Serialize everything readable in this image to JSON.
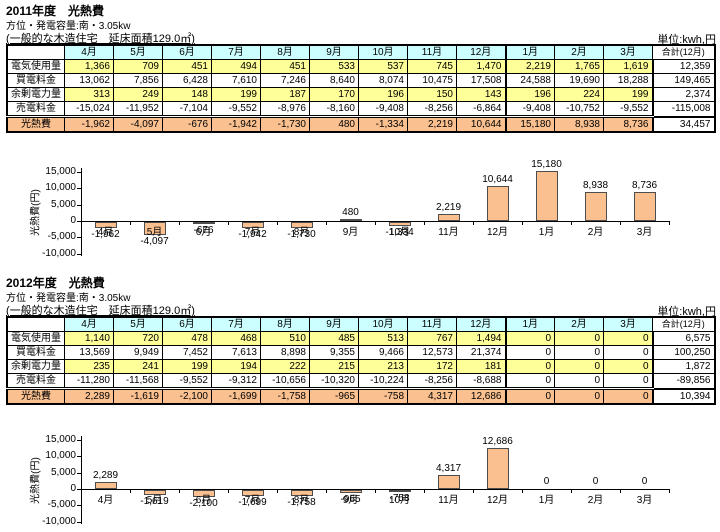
{
  "sections": [
    {
      "title": "2011年度　光熱費",
      "subtitle_capacity": "方位・発電容量:南・3.05kw",
      "subtitle_house": "(一般的な木造住宅　延床面積129.0㎡)",
      "unit_label": "単位:kwh,円",
      "table": {
        "months": [
          "4月",
          "5月",
          "6月",
          "7月",
          "8月",
          "9月",
          "10月",
          "11月",
          "12月",
          "1月",
          "2月",
          "3月"
        ],
        "total_header": "合計(12月)",
        "rows": [
          {
            "label": "電気使用量",
            "fill": "#FFFF99",
            "values": [
              "1,366",
              "709",
              "451",
              "494",
              "451",
              "533",
              "537",
              "745",
              "1,470",
              "2,219",
              "1,765",
              "1,619"
            ],
            "total": "12,359"
          },
          {
            "label": "買電料金",
            "fill": "#FFFFFF",
            "values": [
              "13,062",
              "7,856",
              "6,428",
              "7,610",
              "7,246",
              "8,640",
              "8,074",
              "10,475",
              "17,508",
              "24,588",
              "19,690",
              "18,288"
            ],
            "total": "149,465"
          },
          {
            "label": "余剰電力量",
            "fill": "#FFFF99",
            "values": [
              "313",
              "249",
              "148",
              "199",
              "187",
              "170",
              "196",
              "150",
              "143",
              "196",
              "224",
              "199"
            ],
            "total": "2,374"
          },
          {
            "label": "売電料金",
            "fill": "#FFFFFF",
            "values": [
              "-15,024",
              "-11,952",
              "-7,104",
              "-9,552",
              "-8,976",
              "-8,160",
              "-9,408",
              "-8,256",
              "-6,864",
              "-9,408",
              "-10,752",
              "-9,552"
            ],
            "total": "-115,008"
          },
          {
            "label": "光熱費",
            "fill": "#FAC090",
            "values": [
              "-1,962",
              "-4,097",
              "-676",
              "-1,942",
              "-1,730",
              "480",
              "-1,334",
              "2,219",
              "10,644",
              "15,180",
              "8,938",
              "8,736"
            ],
            "total": "34,457"
          }
        ]
      }
    },
    {
      "title": "2012年度　光熱費",
      "subtitle_capacity": "方位・発電容量:南・3.05kw",
      "subtitle_house": "(一般的な木造住宅　延床面積129.0㎡)",
      "unit_label": "単位:kwh,円",
      "table": {
        "months": [
          "4月",
          "5月",
          "6月",
          "7月",
          "8月",
          "9月",
          "10月",
          "11月",
          "12月",
          "1月",
          "2月",
          "3月"
        ],
        "total_header": "合計(12月)",
        "rows": [
          {
            "label": "電気使用量",
            "fill": "#FFFF99",
            "values": [
              "1,140",
              "720",
              "478",
              "468",
              "510",
              "485",
              "513",
              "767",
              "1,494",
              "0",
              "0",
              "0"
            ],
            "total": "6,575"
          },
          {
            "label": "買電料金",
            "fill": "#FFFFFF",
            "values": [
              "13,569",
              "9,949",
              "7,452",
              "7,613",
              "8,898",
              "9,355",
              "9,466",
              "12,573",
              "21,374",
              "0",
              "0",
              "0"
            ],
            "total": "100,250"
          },
          {
            "label": "余剰電力量",
            "fill": "#FFFF99",
            "values": [
              "235",
              "241",
              "199",
              "194",
              "222",
              "215",
              "213",
              "172",
              "181",
              "0",
              "0",
              "0"
            ],
            "total": "1,872"
          },
          {
            "label": "売電料金",
            "fill": "#FFFFFF",
            "values": [
              "-11,280",
              "-11,568",
              "-9,552",
              "-9,312",
              "-10,656",
              "-10,320",
              "-10,224",
              "-8,256",
              "-8,688",
              "0",
              "0",
              "0"
            ],
            "total": "-89,856"
          },
          {
            "label": "光熱費",
            "fill": "#FAC090",
            "values": [
              "2,289",
              "-1,619",
              "-2,100",
              "-1,699",
              "-1,758",
              "-965",
              "-758",
              "4,317",
              "12,686",
              "0",
              "0",
              "0"
            ],
            "total": "10,394"
          }
        ]
      }
    }
  ],
  "chart_data": [
    {
      "type": "bar",
      "title": "2011年度 光熱費",
      "ylabel": "光熱費(円)",
      "categories": [
        "4月",
        "5月",
        "6月",
        "7月",
        "8月",
        "9月",
        "10月",
        "11月",
        "12月",
        "1月",
        "2月",
        "3月"
      ],
      "values": [
        -1962,
        -4097,
        -676,
        -1942,
        -1730,
        480,
        -1334,
        2219,
        10644,
        15180,
        8938,
        8736
      ],
      "value_labels": [
        "-1,962",
        "-4,097",
        "-676",
        "-1,942",
        "-1,730",
        "480",
        "-1,334",
        "2,219",
        "10,644",
        "15,180",
        "8,938",
        "8,736"
      ],
      "ylim": [
        -10000,
        15000
      ],
      "yticks": [
        15000,
        10000,
        5000,
        0,
        -5000,
        -10000
      ],
      "ytick_labels": [
        "15,000",
        "10,000",
        "5,000",
        "0",
        "-5,000",
        "-10,000"
      ],
      "bar_color": "#FAC090",
      "grid": "off",
      "legend": "none"
    },
    {
      "type": "bar",
      "title": "2012年度 光熱費",
      "ylabel": "光熱費(円)",
      "categories": [
        "4月",
        "5月",
        "6月",
        "7月",
        "8月",
        "9月",
        "10月",
        "11月",
        "12月",
        "1月",
        "2月",
        "3月"
      ],
      "values": [
        2289,
        -1619,
        -2100,
        -1699,
        -1758,
        -965,
        -758,
        4317,
        12686,
        0,
        0,
        0
      ],
      "value_labels": [
        "2,289",
        "-1,619",
        "-2,100",
        "-1,699",
        "-1,758",
        "-965",
        "-758",
        "4,317",
        "12,686",
        "0",
        "0",
        "0"
      ],
      "ylim": [
        -10000,
        15000
      ],
      "yticks": [
        15000,
        10000,
        5000,
        0,
        -5000,
        -10000
      ],
      "ytick_labels": [
        "15,000",
        "10,000",
        "5,000",
        "0",
        "-5,000",
        "-10,000"
      ],
      "bar_color": "#FAC090",
      "grid": "off",
      "legend": "none"
    }
  ],
  "colors": {
    "header_fill": "#CCFFFF",
    "usage_row_fill": "#FFFF99",
    "cost_row_fill": "#FFFFFF",
    "total_row_fill": "#FAC090",
    "bar_fill": "#FAC090"
  }
}
